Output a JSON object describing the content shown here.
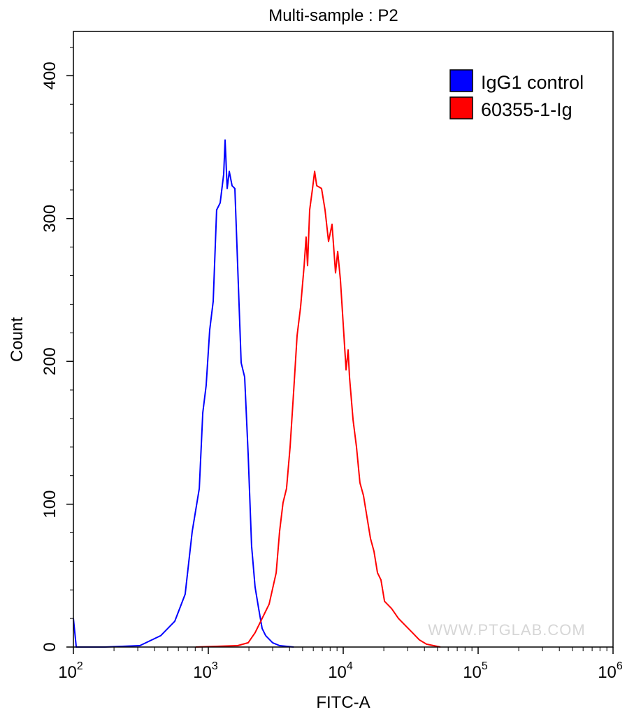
{
  "chart_data": {
    "type": "line",
    "title": "Multi-sample : P2",
    "xlabel": "FITC-A",
    "ylabel": "Count",
    "xscale": "log",
    "xlim": [
      100,
      1000000
    ],
    "ylim": [
      0,
      431
    ],
    "x_ticks": [
      {
        "base": "10",
        "exp": "2",
        "value": 100
      },
      {
        "base": "10",
        "exp": "3",
        "value": 1000
      },
      {
        "base": "10",
        "exp": "4",
        "value": 10000
      },
      {
        "base": "10",
        "exp": "5",
        "value": 100000
      },
      {
        "base": "10",
        "exp": "6",
        "value": 1000000
      }
    ],
    "y_ticks": [
      "0",
      "100",
      "200",
      "300",
      "400"
    ],
    "grid": false,
    "legend_placement": "top-right",
    "watermark": "WWW.PTGLAB.COM",
    "series": [
      {
        "name": "IgG1 control",
        "color": "#0000ff",
        "points": [
          [
            100,
            20
          ],
          [
            105,
            0
          ],
          [
            171,
            0
          ],
          [
            311,
            1
          ],
          [
            445,
            8
          ],
          [
            564,
            18
          ],
          [
            674,
            37
          ],
          [
            760,
            81
          ],
          [
            857,
            111
          ],
          [
            910,
            164
          ],
          [
            964,
            183
          ],
          [
            1024,
            222
          ],
          [
            1087,
            242
          ],
          [
            1153,
            306
          ],
          [
            1225,
            311
          ],
          [
            1300,
            331
          ],
          [
            1331,
            355
          ],
          [
            1380,
            321
          ],
          [
            1430,
            333
          ],
          [
            1500,
            323
          ],
          [
            1574,
            321
          ],
          [
            1650,
            267
          ],
          [
            1752,
            199
          ],
          [
            1860,
            189
          ],
          [
            1974,
            135
          ],
          [
            2094,
            71
          ],
          [
            2222,
            42
          ],
          [
            2360,
            27
          ],
          [
            2506,
            13
          ],
          [
            2660,
            8
          ],
          [
            3000,
            3
          ],
          [
            3375,
            1
          ],
          [
            4290,
            0
          ]
        ]
      },
      {
        "name": "60355-1-Ig",
        "color": "#ff0000",
        "points": [
          [
            807,
            0
          ],
          [
            1650,
            1
          ],
          [
            1974,
            3
          ],
          [
            2222,
            10
          ],
          [
            2506,
            20
          ],
          [
            2825,
            30
          ],
          [
            3185,
            52
          ],
          [
            3375,
            81
          ],
          [
            3580,
            101
          ],
          [
            3800,
            111
          ],
          [
            4040,
            140
          ],
          [
            4290,
            179
          ],
          [
            4550,
            218
          ],
          [
            4830,
            238
          ],
          [
            5130,
            267
          ],
          [
            5310,
            287
          ],
          [
            5440,
            267
          ],
          [
            5640,
            306
          ],
          [
            5920,
            321
          ],
          [
            6140,
            333
          ],
          [
            6360,
            323
          ],
          [
            6910,
            321
          ],
          [
            7330,
            306
          ],
          [
            7780,
            284
          ],
          [
            8260,
            296
          ],
          [
            8770,
            262
          ],
          [
            9100,
            277
          ],
          [
            9530,
            257
          ],
          [
            9890,
            233
          ],
          [
            10500,
            194
          ],
          [
            10870,
            208
          ],
          [
            11140,
            189
          ],
          [
            11830,
            159
          ],
          [
            12540,
            140
          ],
          [
            13300,
            115
          ],
          [
            14130,
            106
          ],
          [
            15000,
            91
          ],
          [
            15920,
            76
          ],
          [
            16900,
            67
          ],
          [
            17950,
            52
          ],
          [
            19050,
            47
          ],
          [
            20230,
            32
          ],
          [
            22800,
            27
          ],
          [
            25650,
            20
          ],
          [
            28900,
            15
          ],
          [
            32600,
            10
          ],
          [
            36700,
            5
          ],
          [
            41400,
            2
          ],
          [
            52500,
            0
          ]
        ]
      }
    ]
  }
}
